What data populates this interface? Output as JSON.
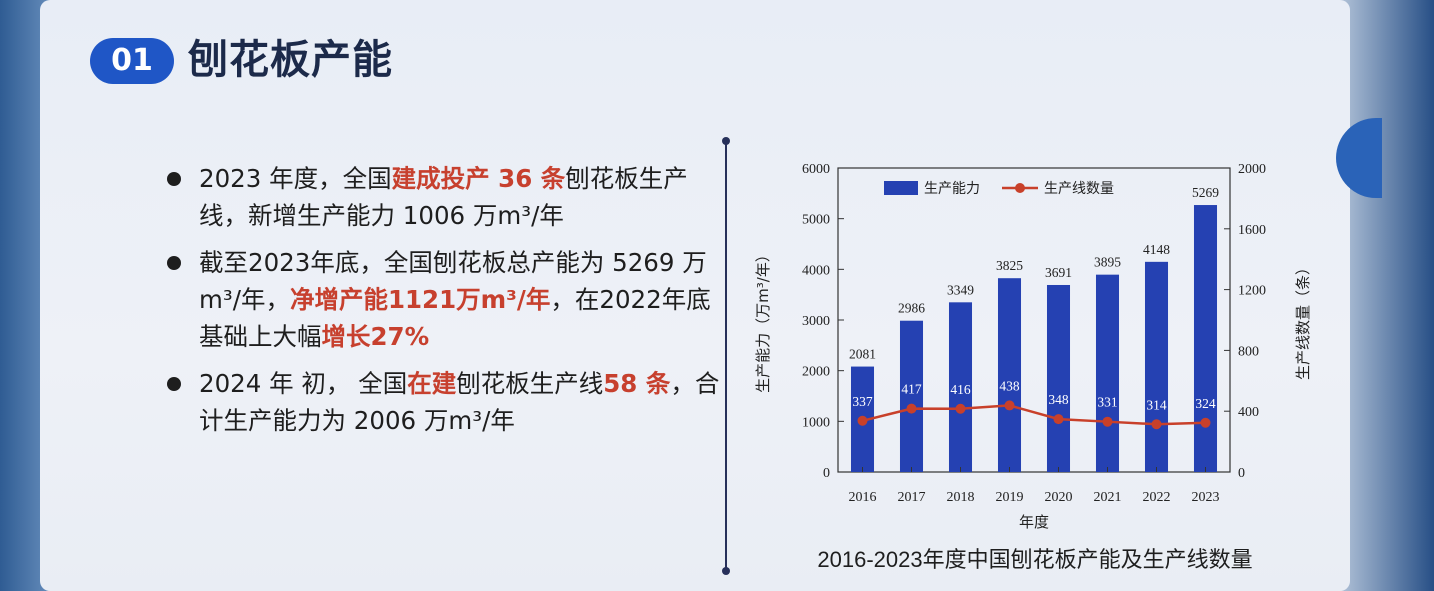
{
  "slide": {
    "section_number": "01",
    "title": "刨花板产能",
    "bullets": [
      [
        {
          "t": "2023 年度，全国",
          "hl": false
        },
        {
          "t": "建成投产 36 条",
          "hl": true
        },
        {
          "t": "刨花板生产线，新增生产能力 1006 万m³/年",
          "hl": false
        }
      ],
      [
        {
          "t": "截至2023年底，全国刨花板总产能为 5269 万m³/年，",
          "hl": false
        },
        {
          "t": "净增产能1121万m³/年",
          "hl": true
        },
        {
          "t": "，在2022年底基础上大幅",
          "hl": false
        },
        {
          "t": "增长27%",
          "hl": true
        }
      ],
      [
        {
          "t": "2024 年 初， 全国",
          "hl": false
        },
        {
          "t": "在建",
          "hl": true
        },
        {
          "t": "刨花板生产线",
          "hl": false
        },
        {
          "t": "58 条",
          "hl": true
        },
        {
          "t": "，合计生产能力为 2006 万m³/年",
          "hl": false
        }
      ]
    ],
    "caption": "2016-2023年度中国刨花板产能及生产线数量"
  },
  "colors": {
    "badge": "#1f56c6",
    "highlight": "#c7402e",
    "bar": "#2541b2",
    "line": "#c8402a"
  },
  "chart_data": {
    "type": "bar",
    "categories": [
      "2016",
      "2017",
      "2018",
      "2019",
      "2020",
      "2021",
      "2022",
      "2023"
    ],
    "series": [
      {
        "name": "生产能力",
        "type": "bar",
        "axis": "left",
        "values": [
          2081,
          2986,
          3349,
          3825,
          3691,
          3895,
          4148,
          5269
        ]
      },
      {
        "name": "生产线数量",
        "type": "line",
        "axis": "right",
        "values": [
          337,
          417,
          416,
          438,
          348,
          331,
          314,
          324
        ]
      }
    ],
    "xlabel": "年度",
    "ylabel": "生产能力（万m³/年）",
    "ylabel_right": "生产线数量（条）",
    "ylim": [
      0,
      6000
    ],
    "ylim_right": [
      0,
      2000
    ],
    "yticks": [
      0,
      1000,
      2000,
      3000,
      4000,
      5000,
      6000
    ],
    "yticks_right": [
      0,
      400,
      800,
      1200,
      1600,
      2000
    ],
    "legend_position": "top",
    "grid": false
  }
}
